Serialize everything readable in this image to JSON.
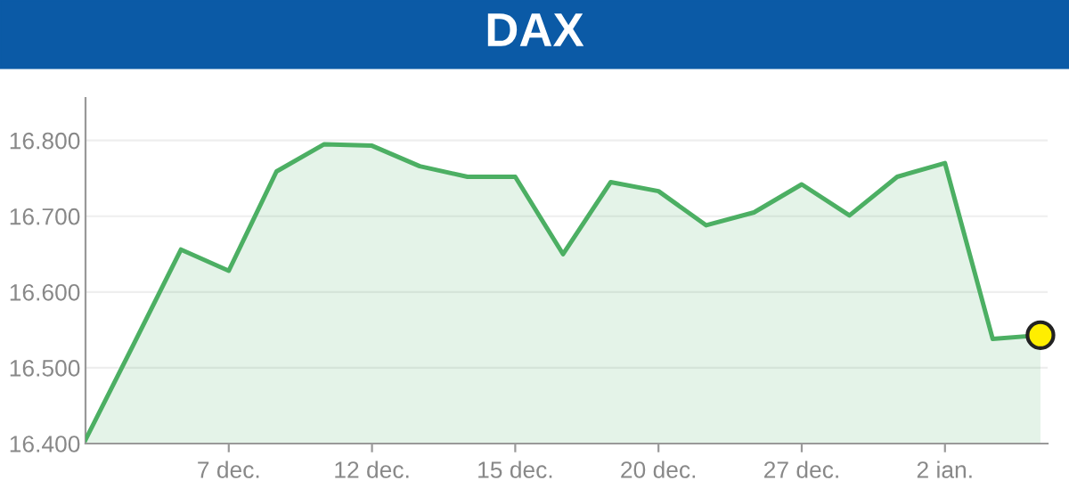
{
  "chart_data": {
    "type": "area",
    "title": "DAX",
    "categories": [
      null,
      null,
      null,
      "7 dec.",
      null,
      null,
      "12 dec.",
      null,
      null,
      "15 dec.",
      null,
      null,
      "20 dec.",
      null,
      null,
      "27 dec.",
      null,
      null,
      "2 ian.",
      null,
      null
    ],
    "series": [
      {
        "color": "#4caf63",
        "values": [
          16405,
          16530,
          16656,
          16628,
          16759,
          16795,
          16793,
          16766,
          16752,
          16752,
          16650,
          16745,
          16733,
          16688,
          16705,
          16742,
          16701,
          16752,
          16770,
          16538,
          16543
        ]
      },
      {
        "type": "scatter",
        "color": "#ffee00",
        "marker": "circle",
        "values": [
          null,
          null,
          null,
          null,
          null,
          null,
          null,
          null,
          null,
          null,
          null,
          null,
          null,
          null,
          null,
          null,
          null,
          null,
          null,
          null,
          16543
        ]
      }
    ],
    "ylim": [
      16400,
      16856
    ],
    "yticks": [
      {
        "value": 16400,
        "label": "16.400"
      },
      {
        "value": 16500,
        "label": "16.500"
      },
      {
        "value": 16600,
        "label": "16.600"
      },
      {
        "value": 16700,
        "label": "16.700"
      },
      {
        "value": 16800,
        "label": "16.800"
      }
    ],
    "grid": "y",
    "legend": false
  }
}
